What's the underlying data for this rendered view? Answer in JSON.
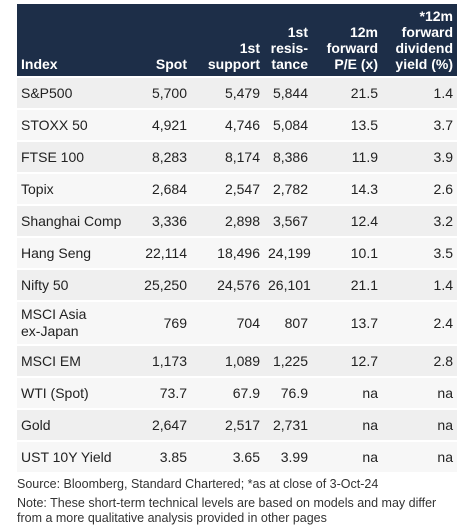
{
  "table": {
    "header": [
      "Index",
      "Spot",
      "1st\nsupport",
      "1st\nresis-\ntance",
      "12m\nforward\nP/E (x)",
      "*12m\nforward\ndividend\nyield (%)"
    ],
    "rows": [
      [
        "S&P500",
        "5,700",
        "5,479",
        "5,844",
        "21.5",
        "1.4"
      ],
      [
        "STOXX 50",
        "4,921",
        "4,746",
        "5,084",
        "13.5",
        "3.7"
      ],
      [
        "FTSE 100",
        "8,283",
        "8,174",
        "8,386",
        "11.9",
        "3.9"
      ],
      [
        "Topix",
        "2,684",
        "2,547",
        "2,782",
        "14.3",
        "2.6"
      ],
      [
        "Shanghai Comp",
        "3,336",
        "2,898",
        "3,567",
        "12.4",
        "3.2"
      ],
      [
        "Hang Seng",
        "22,114",
        "18,496",
        "24,199",
        "10.1",
        "3.5"
      ],
      [
        "Nifty 50",
        "25,250",
        "24,576",
        "26,101",
        "21.1",
        "1.4"
      ],
      [
        "MSCI Asia\nex-Japan",
        "769",
        "704",
        "807",
        "13.7",
        "2.4"
      ],
      [
        "MSCI EM",
        "1,173",
        "1,089",
        "1,225",
        "12.7",
        "2.8"
      ],
      [
        "WTI (Spot)",
        "73.7",
        "67.9",
        "76.9",
        "na",
        "na"
      ],
      [
        "Gold",
        "2,647",
        "2,517",
        "2,731",
        "na",
        "na"
      ],
      [
        "UST 10Y Yield",
        "3.85",
        "3.65",
        "3.99",
        "na",
        "na"
      ]
    ]
  },
  "footer": {
    "source": "Source: Bloomberg, Standard Chartered; *as at close of 3-Oct-24",
    "note": "Note: These short-term technical levels are based on models and may differ from a more qualitative analysis provided in other pages"
  }
}
